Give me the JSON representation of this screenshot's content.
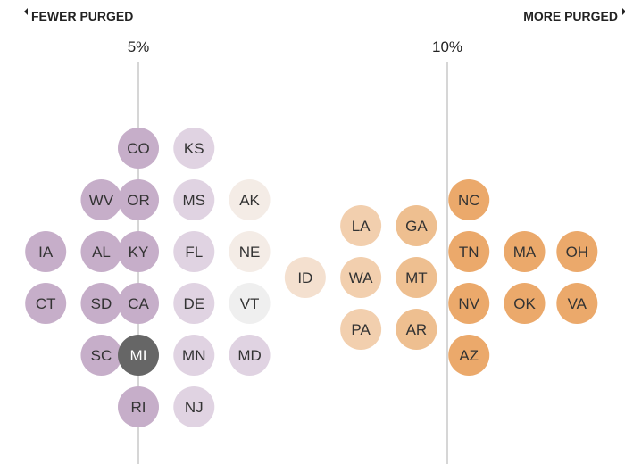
{
  "header": {
    "left_label": "FEWER PURGED",
    "right_label": "MORE PURGED"
  },
  "chart_data": {
    "type": "scatter",
    "x_unit": "percent",
    "ticks": [
      {
        "value": 5,
        "label": "5%"
      },
      {
        "value": 10,
        "label": "10%"
      }
    ],
    "colors": {
      "purple_strong": "#c6aec9",
      "purple_light": "#e0d3e2",
      "neutral_warm": "#f4ece6",
      "neutral_grey": "#efefef",
      "orange_light": "#f2cfae",
      "orange_mid": "#eebf90",
      "orange_strong": "#eba96b",
      "highlight": "#666666"
    },
    "states": [
      {
        "abbr": "IA",
        "x": 3.5,
        "y": 0,
        "color": "#c6aec9"
      },
      {
        "abbr": "CT",
        "x": 3.5,
        "y": -1,
        "color": "#c6aec9"
      },
      {
        "abbr": "WV",
        "x": 4.4,
        "y": 1,
        "color": "#c6aec9"
      },
      {
        "abbr": "AL",
        "x": 4.4,
        "y": 0,
        "color": "#c6aec9"
      },
      {
        "abbr": "SD",
        "x": 4.4,
        "y": -1,
        "color": "#c6aec9"
      },
      {
        "abbr": "SC",
        "x": 4.4,
        "y": -2,
        "color": "#c6aec9"
      },
      {
        "abbr": "CO",
        "x": 5.0,
        "y": 2,
        "color": "#c6aec9"
      },
      {
        "abbr": "OR",
        "x": 5.0,
        "y": 1,
        "color": "#c6aec9"
      },
      {
        "abbr": "KY",
        "x": 5.0,
        "y": 0,
        "color": "#c6aec9"
      },
      {
        "abbr": "CA",
        "x": 5.0,
        "y": -1,
        "color": "#c6aec9"
      },
      {
        "abbr": "MI",
        "x": 5.0,
        "y": -2,
        "color": "#666666",
        "text_color": "#ffffff"
      },
      {
        "abbr": "RI",
        "x": 5.0,
        "y": -3,
        "color": "#c6aec9"
      },
      {
        "abbr": "KS",
        "x": 5.9,
        "y": 2,
        "color": "#e0d3e2"
      },
      {
        "abbr": "MS",
        "x": 5.9,
        "y": 1,
        "color": "#e0d3e2"
      },
      {
        "abbr": "FL",
        "x": 5.9,
        "y": 0,
        "color": "#e0d3e2"
      },
      {
        "abbr": "DE",
        "x": 5.9,
        "y": -1,
        "color": "#e0d3e2"
      },
      {
        "abbr": "MN",
        "x": 5.9,
        "y": -2,
        "color": "#e0d3e2"
      },
      {
        "abbr": "NJ",
        "x": 5.9,
        "y": -3,
        "color": "#e0d3e2"
      },
      {
        "abbr": "AK",
        "x": 6.8,
        "y": 1,
        "color": "#f4ece6"
      },
      {
        "abbr": "NE",
        "x": 6.8,
        "y": 0,
        "color": "#f4ece6"
      },
      {
        "abbr": "VT",
        "x": 6.8,
        "y": -1,
        "color": "#efefef"
      },
      {
        "abbr": "MD",
        "x": 6.8,
        "y": -2,
        "color": "#e0d3e2"
      },
      {
        "abbr": "ID",
        "x": 7.7,
        "y": -0.5,
        "color": "#f4e0cf"
      },
      {
        "abbr": "LA",
        "x": 8.6,
        "y": 0.5,
        "color": "#f2cfae"
      },
      {
        "abbr": "WA",
        "x": 8.6,
        "y": -0.5,
        "color": "#f2cfae"
      },
      {
        "abbr": "PA",
        "x": 8.6,
        "y": -1.5,
        "color": "#f2cfae"
      },
      {
        "abbr": "GA",
        "x": 9.5,
        "y": 0.5,
        "color": "#eebf90"
      },
      {
        "abbr": "MT",
        "x": 9.5,
        "y": -0.5,
        "color": "#eebf90"
      },
      {
        "abbr": "AR",
        "x": 9.5,
        "y": -1.5,
        "color": "#eebf90"
      },
      {
        "abbr": "NC",
        "x": 10.35,
        "y": 1,
        "color": "#eba96b"
      },
      {
        "abbr": "TN",
        "x": 10.35,
        "y": 0,
        "color": "#eba96b"
      },
      {
        "abbr": "NV",
        "x": 10.35,
        "y": -1,
        "color": "#eba96b"
      },
      {
        "abbr": "AZ",
        "x": 10.35,
        "y": -2,
        "color": "#eba96b"
      },
      {
        "abbr": "MA",
        "x": 11.25,
        "y": 0,
        "color": "#eba96b"
      },
      {
        "abbr": "OK",
        "x": 11.25,
        "y": -1,
        "color": "#eba96b"
      },
      {
        "abbr": "OH",
        "x": 12.1,
        "y": 0,
        "color": "#eba96b"
      },
      {
        "abbr": "VA",
        "x": 12.1,
        "y": -1,
        "color": "#eba96b"
      }
    ]
  }
}
